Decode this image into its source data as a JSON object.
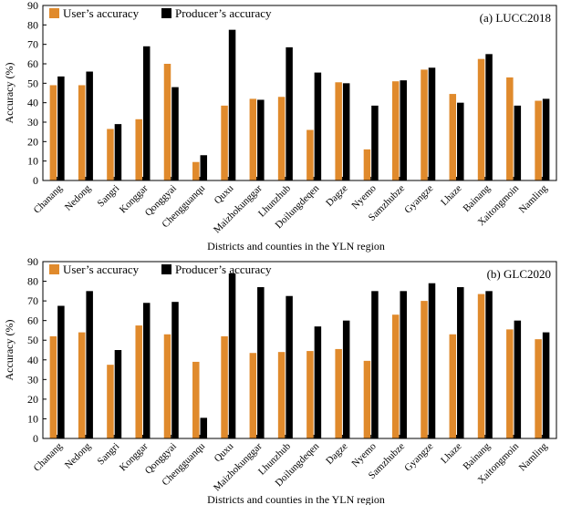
{
  "chart_data": [
    {
      "type": "bar",
      "annotation": "(a) LUCC2018",
      "xlabel": "Districts and counties in the YLN region",
      "ylabel": "Accuracy (%)",
      "ylim": [
        0,
        90
      ],
      "yticks": [
        0,
        10,
        20,
        30,
        40,
        50,
        60,
        70,
        80,
        90
      ],
      "grid": false,
      "legend_position": "top-left",
      "categories": [
        "Chanang",
        "Nedong",
        "Sangri",
        "Konggar",
        "Qonggyai",
        "Chengguanqu",
        "Quxu",
        "Maizhokunggar",
        "Lhunzhub",
        "Doilungdeqen",
        "Dagze",
        "Nyemo",
        "Samzhubze",
        "Gyangze",
        "Lhaze",
        "Bainang",
        "Xaitongmoin",
        "Namling"
      ],
      "series": [
        {
          "name": "User’s accuracy",
          "color": "#e08a2c",
          "values": [
            49,
            49,
            26.5,
            31.5,
            60,
            9.5,
            38.5,
            42,
            43,
            26,
            50.5,
            16,
            51,
            57,
            44.5,
            62.5,
            53,
            41
          ]
        },
        {
          "name": "Producer’s accuracy",
          "color": "#000000",
          "values": [
            53.5,
            56,
            29,
            69,
            48,
            13,
            77.5,
            41.5,
            68.5,
            55.5,
            50,
            38.5,
            51.5,
            58,
            40,
            65,
            38.5,
            42
          ]
        }
      ]
    },
    {
      "type": "bar",
      "annotation": "(b) GLC2020",
      "xlabel": "Districts and counties in the YLN region",
      "ylabel": "Accuracy (%)",
      "ylim": [
        0,
        90
      ],
      "yticks": [
        0,
        10,
        20,
        30,
        40,
        50,
        60,
        70,
        80,
        90
      ],
      "grid": false,
      "legend_position": "top-left",
      "categories": [
        "Chanang",
        "Nedong",
        "Sangri",
        "Konggar",
        "Qonggyai",
        "Chengguanqu",
        "Quxu",
        "Maizhokunggar",
        "Lhunzhub",
        "Doilungdeqen",
        "Dagze",
        "Nyemo",
        "Samzhubze",
        "Gyangze",
        "Lhaze",
        "Bainang",
        "Xaitongmoin",
        "Namling"
      ],
      "series": [
        {
          "name": "User’s accuracy",
          "color": "#e08a2c",
          "values": [
            52,
            54,
            37.5,
            57.5,
            53,
            39,
            52,
            43.5,
            44,
            44.5,
            45.5,
            39.5,
            63,
            70,
            53,
            73.5,
            55.5,
            50.5
          ]
        },
        {
          "name": "Producer’s accuracy",
          "color": "#000000",
          "values": [
            67.5,
            75,
            45,
            69,
            69.5,
            10.5,
            84,
            77,
            72.5,
            57,
            60,
            75,
            75,
            79,
            77,
            75,
            60,
            54
          ]
        }
      ]
    }
  ]
}
